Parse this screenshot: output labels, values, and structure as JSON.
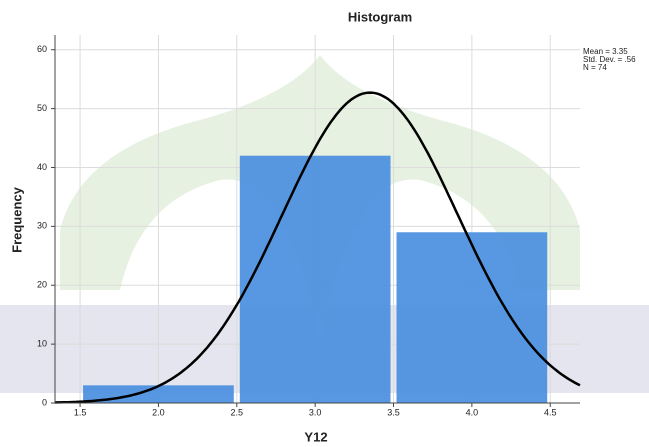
{
  "chart_data": {
    "type": "histogram",
    "title": "Histogram",
    "x_label": "Y12",
    "y_label": "Frequency",
    "bins": [
      1.5,
      2.5,
      3.5,
      4.5
    ],
    "values": [
      3,
      42,
      29
    ],
    "color": "#4a8fdf",
    "curve_color": "#000000",
    "xlim": [
      1.34,
      4.69
    ],
    "ylim": [
      0,
      62.5
    ],
    "xticks": [
      1.5,
      {
        "value": 2.0,
        "label": "2.0"
      },
      2.5,
      {
        "value": 3.0,
        "label": "3.0"
      },
      3.5,
      {
        "value": 4.0,
        "label": "4.0"
      },
      4.5
    ],
    "yticks": [
      0,
      10,
      20,
      30,
      40,
      50,
      60
    ],
    "grid": true,
    "stats": [
      {
        "value": 3.35,
        "label": "Mean = 3.35"
      },
      {
        "value": 0.56,
        "label": "Std. Dev. = .56"
      },
      {
        "value": 74,
        "label": "N = 74"
      }
    ]
  }
}
